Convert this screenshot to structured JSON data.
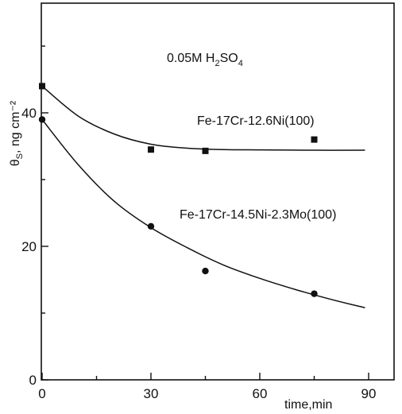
{
  "chart_data": {
    "type": "scatter",
    "xlim": [
      0,
      90
    ],
    "ylim": [
      0,
      55
    ],
    "x_ticks": [
      0,
      30,
      60,
      90
    ],
    "y_ticks": [
      0,
      20,
      40
    ],
    "x_tick_labels": [
      "0",
      "30",
      "60",
      "90"
    ],
    "y_tick_labels": [
      "0",
      "20",
      "40"
    ],
    "xlabel": "time,min",
    "ylabel": {
      "symbol": "θ",
      "subscript": "S",
      "unit": ", ng cm⁻²"
    },
    "annotation": {
      "prefix": "0.05M  H",
      "sub1": "2",
      "mid": "SO",
      "sub2": "4"
    },
    "series": [
      {
        "name": "Fe-17Cr-12.6Ni(100)",
        "marker": "square",
        "points": [
          [
            0,
            44.0
          ],
          [
            30,
            34.5
          ],
          [
            45,
            34.3
          ],
          [
            75,
            36.0
          ]
        ],
        "fit": [
          [
            0,
            44.0
          ],
          [
            10,
            39.5
          ],
          [
            20,
            36.8
          ],
          [
            30,
            35.3
          ],
          [
            40,
            34.7
          ],
          [
            50,
            34.5
          ],
          [
            60,
            34.45
          ],
          [
            75,
            34.4
          ],
          [
            89,
            34.4
          ]
        ]
      },
      {
        "name": "Fe-17Cr-14.5Ni-2.3Mo(100)",
        "marker": "circle",
        "points": [
          [
            0,
            39.0
          ],
          [
            30,
            23.0
          ],
          [
            45,
            16.3
          ],
          [
            75,
            12.9
          ]
        ],
        "fit": [
          [
            0,
            39.0
          ],
          [
            10,
            32.2
          ],
          [
            20,
            26.7
          ],
          [
            30,
            22.8
          ],
          [
            40,
            19.8
          ],
          [
            50,
            17.2
          ],
          [
            60,
            15.2
          ],
          [
            70,
            13.5
          ],
          [
            80,
            12.0
          ],
          [
            89,
            10.8
          ]
        ]
      }
    ]
  }
}
